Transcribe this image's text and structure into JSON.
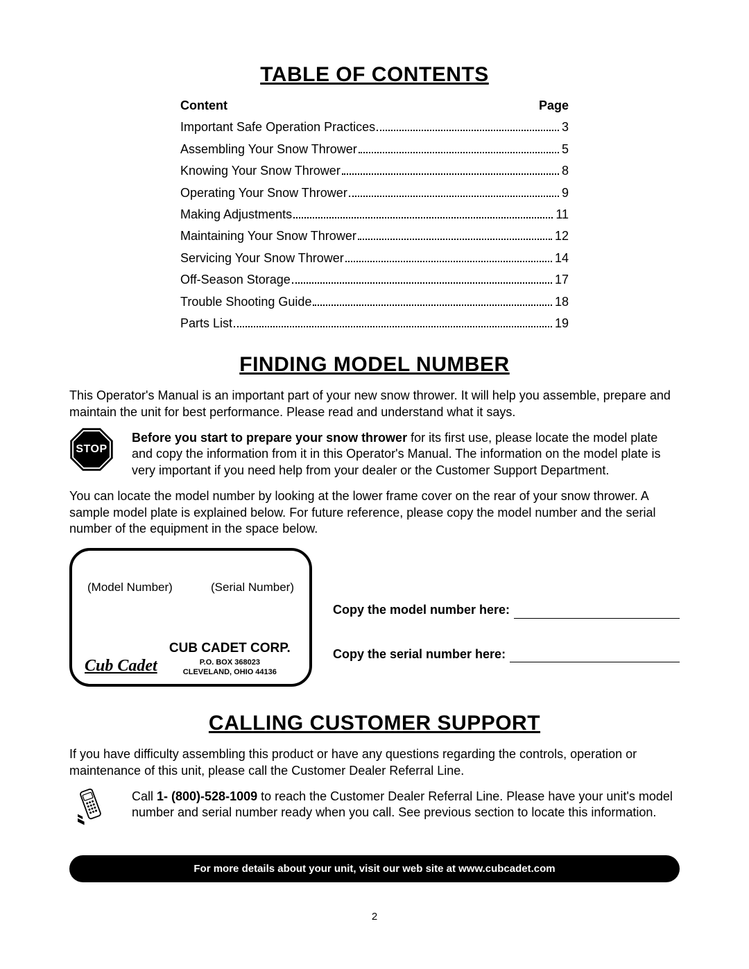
{
  "sections": {
    "toc_title": "TABLE OF CONTENTS",
    "finding_title": "FINDING MODEL NUMBER",
    "support_title": "CALLING CUSTOMER SUPPORT"
  },
  "toc": {
    "header_content": "Content",
    "header_page": "Page",
    "items": [
      {
        "label": "Important Safe Operation Practices",
        "page": "3"
      },
      {
        "label": "Assembling Your Snow Thrower",
        "page": "5"
      },
      {
        "label": "Knowing Your Snow Thrower",
        "page": "8"
      },
      {
        "label": "Operating Your Snow Thrower",
        "page": "9"
      },
      {
        "label": "Making Adjustments",
        "page": "11"
      },
      {
        "label": "Maintaining Your Snow Thrower",
        "page": "12"
      },
      {
        "label": "Servicing Your Snow Thrower",
        "page": "14"
      },
      {
        "label": "Off-Season Storage",
        "page": "17"
      },
      {
        "label": "Trouble Shooting Guide",
        "page": "18"
      },
      {
        "label": "Parts List",
        "page": "19"
      }
    ]
  },
  "finding": {
    "intro": "This Operator's Manual is an important part of your new snow thrower. It will help you assemble, prepare and maintain the unit for best performance. Please read and understand what it says.",
    "stop_lead": "Before you start to prepare your snow thrower",
    "stop_rest": " for its first use, please locate the model plate and copy the information from it in this Operator's Manual. The information on the model plate is very important if you need help from your dealer or the Customer Support Department.",
    "after": "You can locate the model number by looking at the lower frame cover on the rear of your snow thrower. A sample model plate is explained below. For future reference, please copy the model number and the serial number of the equipment in the space below.",
    "stop_label": "STOP"
  },
  "plate": {
    "model_label": "(Model Number)",
    "serial_label": "(Serial Number)",
    "logo_text": "Cub Cadet",
    "corp_name": "CUB CADET CORP.",
    "pobox": "P.O. BOX 368023",
    "city": "CLEVELAND, OHIO  44136"
  },
  "copy": {
    "model": "Copy the model number here:",
    "serial": "Copy the serial number here:"
  },
  "support": {
    "intro": "If you have difficulty assembling this product or have any questions regarding the controls, operation or maintenance of this unit, please call the Customer Dealer Referral Line.",
    "call_pre": "Call ",
    "phone": "1- (800)-528-1009",
    "call_post": " to reach the Customer Dealer Referral Line. Please have your unit's model number and serial number ready when you call. See previous section to locate this information."
  },
  "footer": "For more details about your unit, visit our web site at www.cubcadet.com",
  "page_number": "2",
  "colors": {
    "text": "#000000",
    "background": "#ffffff",
    "footer_bg": "#000000",
    "footer_text": "#ffffff"
  },
  "typography": {
    "body_font": "Arial",
    "heading_font": "Arial Narrow",
    "body_size_pt": 13,
    "heading_size_pt": 22,
    "heading_weight": "900"
  }
}
